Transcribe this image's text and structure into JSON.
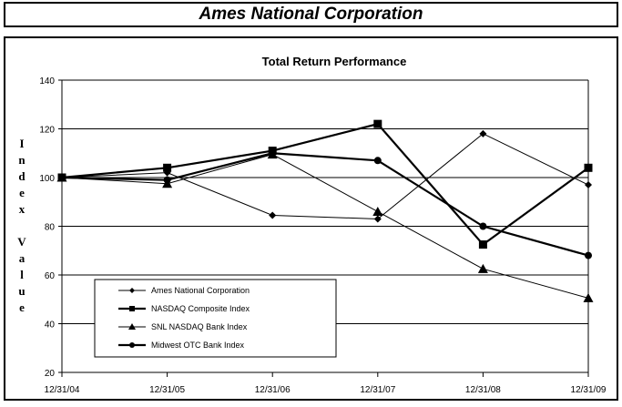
{
  "page_title": "Ames National Corporation",
  "chart_data": {
    "type": "line",
    "title": "Total Return Performance",
    "xlabel": "",
    "ylabel": "Index Value",
    "ylim": [
      20,
      140
    ],
    "yticks": [
      20,
      40,
      60,
      80,
      100,
      120,
      140
    ],
    "categories": [
      "12/31/04",
      "12/31/05",
      "12/31/06",
      "12/31/07",
      "12/31/08",
      "12/31/09"
    ],
    "grid": "horizontal",
    "legend_position": "bottom-left",
    "series": [
      {
        "name": "Ames National Corporation",
        "marker": "diamond",
        "values": [
          100,
          102,
          84.5,
          83,
          118,
          97
        ]
      },
      {
        "name": "NASDAQ Composite Index",
        "marker": "square",
        "values": [
          100,
          104,
          111,
          122,
          72.5,
          104
        ]
      },
      {
        "name": "SNL NASDAQ Bank Index",
        "marker": "triangle",
        "values": [
          100,
          97.5,
          109.5,
          86,
          62.5,
          50.5
        ]
      },
      {
        "name": "Midwest OTC Bank Index",
        "marker": "circle",
        "values": [
          100,
          99,
          110,
          107,
          80,
          68
        ]
      }
    ]
  }
}
